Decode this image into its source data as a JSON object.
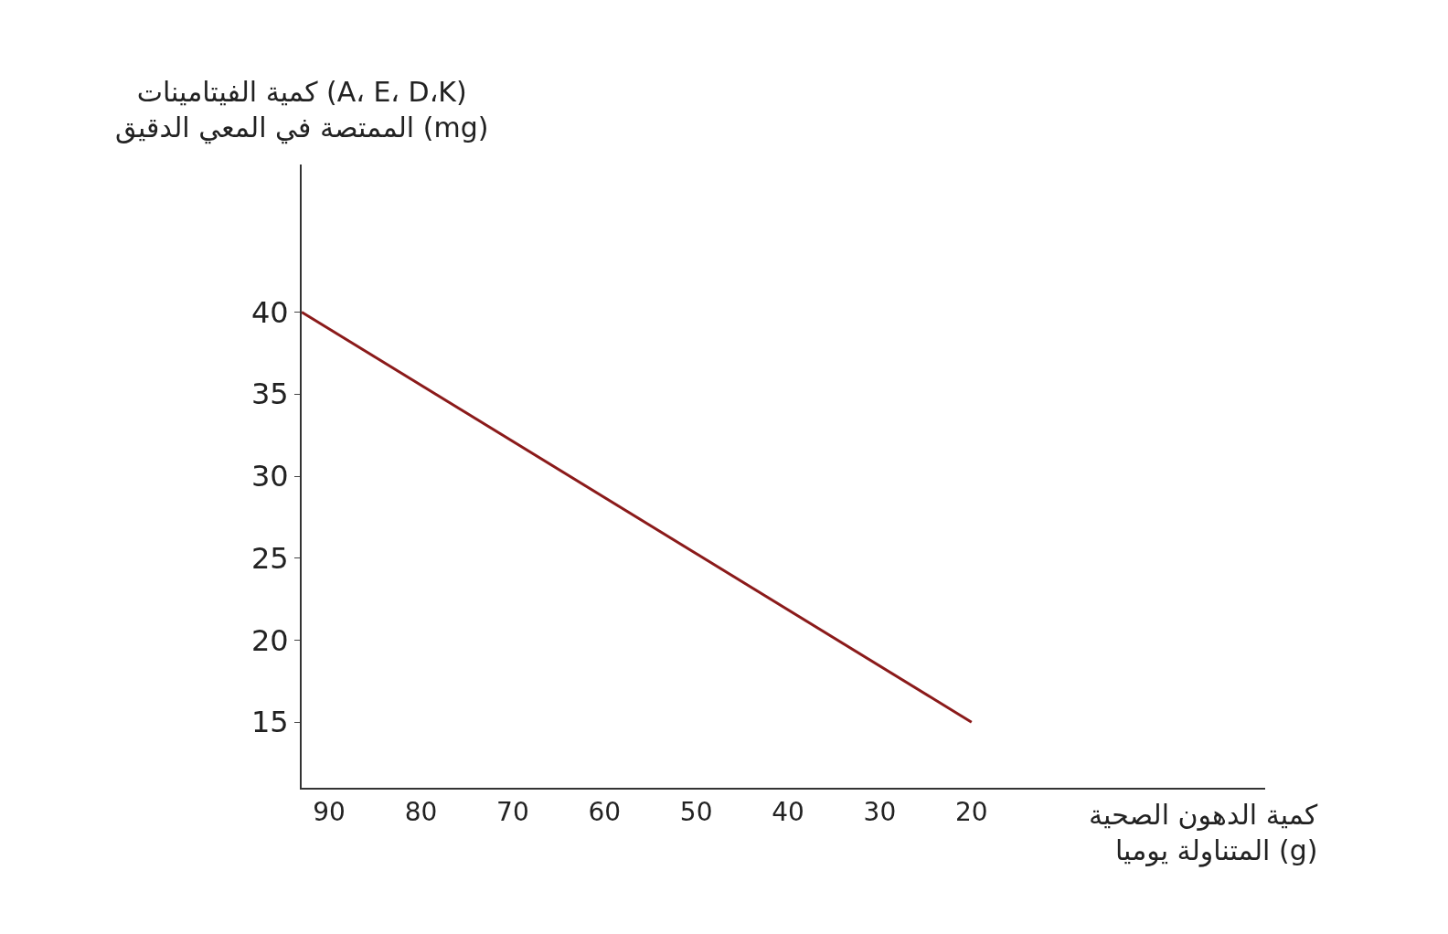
{
  "chart_data": {
    "type": "line",
    "xlabel": "كمية الدهون الصحية\nالمتناولة يوميا (g)",
    "ylabel": "كمية الفيتامينات (A، E، D،K)\nالممتصة في المعي الدقيق (mg)",
    "x": [
      93,
      20
    ],
    "series": [
      {
        "color": "#8b1a1a",
        "values": [
          40,
          15
        ]
      }
    ],
    "xlim": [
      93,
      -12
    ],
    "xticks": [
      90,
      80,
      70,
      60,
      50,
      40,
      30,
      20
    ],
    "ylim": [
      11,
      49
    ],
    "yticks": [
      15,
      20,
      25,
      30,
      35,
      40
    ],
    "marker": "none",
    "line_style": "solid"
  }
}
